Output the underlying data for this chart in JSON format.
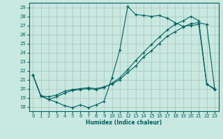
{
  "xlabel": "Humidex (Indice chaleur)",
  "xlim": [
    -0.5,
    23.5
  ],
  "ylim": [
    17.5,
    29.5
  ],
  "yticks": [
    18,
    19,
    20,
    21,
    22,
    23,
    24,
    25,
    26,
    27,
    28,
    29
  ],
  "xticks": [
    0,
    1,
    2,
    3,
    4,
    5,
    6,
    7,
    8,
    9,
    10,
    11,
    12,
    13,
    14,
    15,
    16,
    17,
    18,
    19,
    20,
    21,
    22,
    23
  ],
  "bg_color": "#c8e8e0",
  "grid_color": "#b0c8c0",
  "line_color": "#006060",
  "line1_x": [
    0,
    1,
    2,
    3,
    4,
    5,
    6,
    7,
    8,
    9,
    10,
    11,
    12,
    13,
    14,
    15,
    16,
    17,
    18,
    19,
    20,
    21,
    22,
    23
  ],
  "line1_y": [
    21.5,
    19.2,
    18.8,
    18.5,
    18.1,
    17.9,
    18.2,
    17.9,
    18.2,
    18.6,
    21.2,
    24.3,
    29.1,
    28.2,
    28.1,
    28.0,
    28.1,
    27.8,
    27.3,
    26.9,
    27.0,
    27.1,
    20.5,
    19.9
  ],
  "line2_x": [
    0,
    1,
    2,
    3,
    4,
    5,
    6,
    7,
    8,
    9,
    10,
    11,
    12,
    13,
    14,
    15,
    16,
    17,
    18,
    19,
    20,
    21,
    22,
    23
  ],
  "line2_y": [
    21.5,
    19.2,
    19.1,
    19.3,
    19.7,
    19.9,
    20.0,
    20.1,
    20.0,
    20.2,
    20.5,
    21.0,
    21.8,
    22.5,
    23.5,
    24.2,
    25.0,
    25.8,
    26.3,
    26.8,
    27.2,
    27.3,
    27.1,
    20.0
  ],
  "line3_x": [
    0,
    1,
    2,
    3,
    4,
    5,
    6,
    7,
    8,
    9,
    10,
    11,
    12,
    13,
    14,
    15,
    16,
    17,
    18,
    19,
    20,
    21,
    22,
    23
  ],
  "line3_y": [
    21.5,
    19.2,
    18.8,
    19.1,
    19.5,
    19.8,
    19.9,
    20.0,
    19.9,
    20.1,
    20.6,
    21.2,
    22.1,
    23.1,
    24.0,
    24.9,
    25.7,
    26.5,
    27.1,
    27.5,
    28.0,
    27.5,
    20.5,
    20.0
  ]
}
